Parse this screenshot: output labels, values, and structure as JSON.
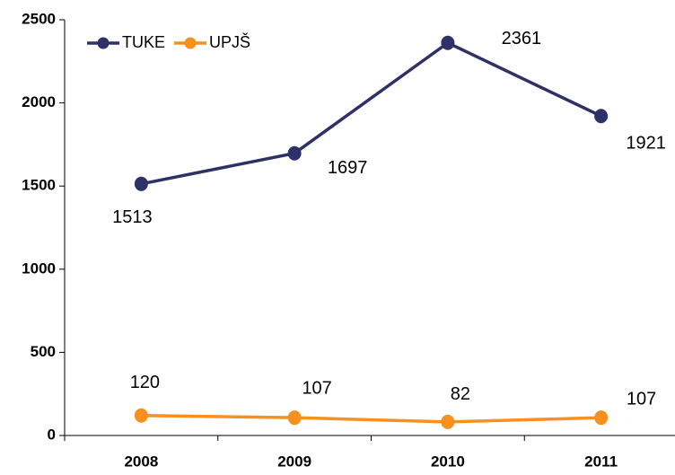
{
  "chart_data": {
    "type": "line",
    "categories": [
      "2008",
      "2009",
      "2010",
      "2011"
    ],
    "series": [
      {
        "name": "TUKE",
        "color": "#2e3168",
        "values": [
          1513,
          1697,
          2361,
          1921
        ]
      },
      {
        "name": "UPJŠ",
        "color": "#f7901e",
        "values": [
          120,
          107,
          82,
          107
        ]
      }
    ],
    "ylim": [
      0,
      2500
    ],
    "yticks": [
      0,
      500,
      1000,
      1500,
      2000,
      2500
    ],
    "grid": false,
    "legend": "upper left"
  }
}
